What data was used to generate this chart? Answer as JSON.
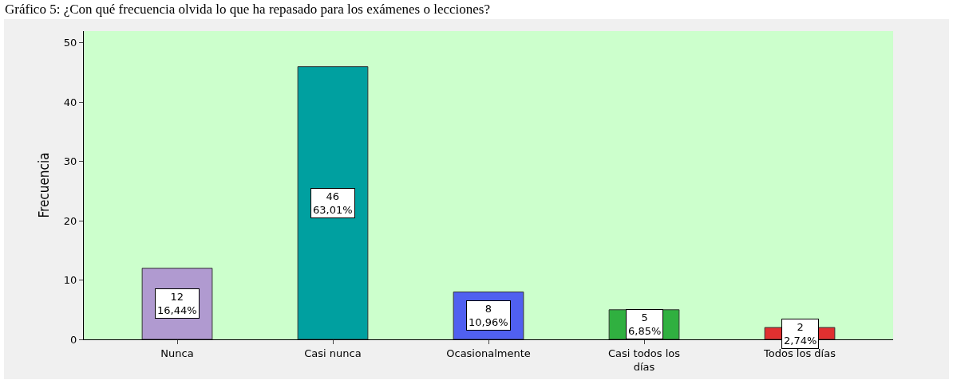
{
  "chart_data": {
    "type": "bar",
    "title": "Gráfico 5: ¿Con qué frecuencia olvida lo que ha repasado para los exámenes o lecciones?",
    "ylabel": "Frecuencia",
    "categories": [
      "Nunca",
      "Casi nunca",
      "Ocasionalmente",
      "Casi todos los días",
      "Todos los días"
    ],
    "values": [
      12,
      46,
      8,
      5,
      2
    ],
    "colors": [
      "#b09ad0",
      "#00a0a0",
      "#5060f0",
      "#30b040",
      "#e03030"
    ],
    "value_labels": [
      "12\n16,44%",
      "46\n63,01%",
      "8\n10,96%",
      "5\n6,85%",
      "2\n2,74%"
    ],
    "ylim": [
      0,
      52
    ],
    "yticks": [
      0,
      10,
      20,
      30,
      40,
      50
    ],
    "grid": false
  }
}
